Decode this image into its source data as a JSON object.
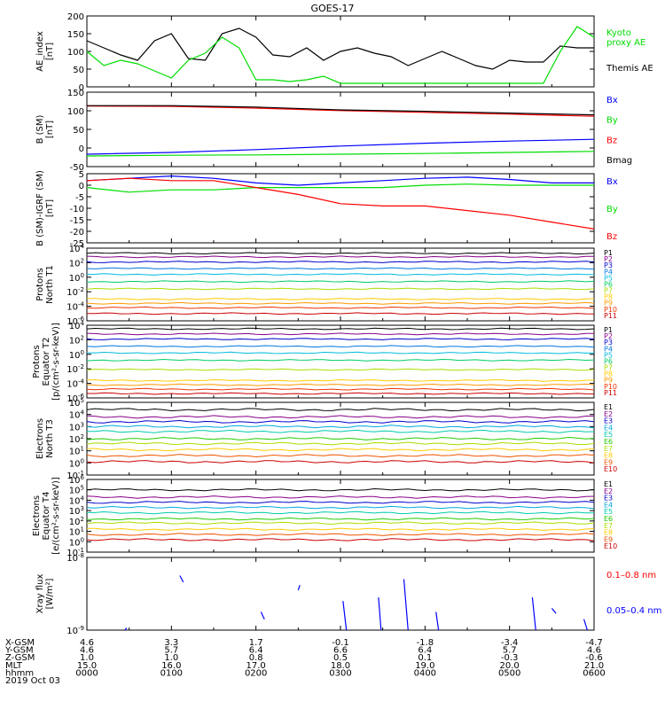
{
  "title": "GOES-17",
  "date_label": "2019 Oct 03",
  "footer": {
    "row_labels": [
      "X-GSM",
      "Y-GSM",
      "Z-GSM",
      "MLT",
      "hhmm"
    ],
    "columns": [
      [
        "4.6",
        "4.6",
        "1.0",
        "15.0",
        "0000"
      ],
      [
        "3.3",
        "5.7",
        "1.0",
        "16.0",
        "0100"
      ],
      [
        "1.7",
        "6.4",
        "0.8",
        "17.0",
        "0200"
      ],
      [
        "-0.1",
        "6.6",
        "0.5",
        "18.0",
        "0300"
      ],
      [
        "-1.8",
        "6.4",
        "0.1",
        "19.0",
        "0400"
      ],
      [
        "-3.4",
        "5.7",
        "-0.3",
        "20.0",
        "0500"
      ],
      [
        "-4.7",
        "4.6",
        "-0.6",
        "21.0",
        "0600"
      ]
    ]
  },
  "chart_data": [
    {
      "type": "line",
      "panel": "ae",
      "ylabel_lines": [
        "AE_index",
        "[nT]"
      ],
      "ylim": [
        0,
        200
      ],
      "yticks": [
        "0",
        "50",
        "100",
        "150",
        "200"
      ],
      "x_hours": [
        0,
        0.2,
        0.4,
        0.6,
        0.8,
        1,
        1.2,
        1.4,
        1.6,
        1.8,
        2,
        2.2,
        2.4,
        2.6,
        2.8,
        3,
        3.2,
        3.4,
        3.6,
        3.8,
        4,
        4.2,
        4.4,
        4.6,
        4.8,
        5,
        5.2,
        5.4,
        5.6,
        5.8,
        6
      ],
      "series": [
        {
          "name": "Themis AE",
          "color": "#000000",
          "values": [
            130,
            110,
            90,
            75,
            130,
            150,
            80,
            75,
            150,
            165,
            140,
            90,
            85,
            110,
            75,
            100,
            110,
            95,
            85,
            60,
            80,
            100,
            80,
            60,
            50,
            75,
            70,
            70,
            115,
            110,
            110
          ]
        },
        {
          "name": "Kyoto proxy AE",
          "color": "#00dd00",
          "values": [
            100,
            60,
            75,
            65,
            45,
            25,
            75,
            95,
            140,
            110,
            20,
            20,
            15,
            20,
            30,
            10,
            10,
            10,
            10,
            10,
            10,
            10,
            10,
            10,
            10,
            10,
            10,
            10,
            100,
            170,
            140
          ]
        }
      ],
      "legend": [
        {
          "text_lines": [
            "Kyoto",
            "proxy AE"
          ],
          "color": "#00dd00"
        },
        {
          "text_lines": [
            "Themis AE"
          ],
          "color": "#000000"
        }
      ]
    },
    {
      "type": "line",
      "panel": "bsm",
      "ylabel_lines": [
        "B (SM)",
        "[nT]"
      ],
      "ylim": [
        -60,
        150
      ],
      "yticks": [
        "-50",
        "0",
        "50",
        "100",
        "150"
      ],
      "x_hours": [
        0,
        1,
        2,
        3,
        4,
        5,
        6
      ],
      "series": [
        {
          "name": "Bx",
          "color": "#0000ff",
          "values": [
            -25,
            -20,
            -12,
            -2,
            6,
            12,
            17
          ]
        },
        {
          "name": "By",
          "color": "#00dd00",
          "values": [
            -30,
            -28,
            -27,
            -25,
            -23,
            -20,
            -17
          ]
        },
        {
          "name": "Bz",
          "color": "#ff0000",
          "values": [
            111,
            110,
            105,
            98,
            93,
            88,
            82
          ]
        },
        {
          "name": "Bmag",
          "color": "#000000",
          "values": [
            112,
            112,
            108,
            100,
            96,
            91,
            86
          ]
        }
      ],
      "legend": [
        {
          "text_lines": [
            "Bx"
          ],
          "color": "#0000ff"
        },
        {
          "text_lines": [
            "By"
          ],
          "color": "#00dd00"
        },
        {
          "text_lines": [
            "Bz"
          ],
          "color": "#ff0000"
        },
        {
          "text_lines": [
            "Bmag"
          ],
          "color": "#000000"
        }
      ]
    },
    {
      "type": "line",
      "panel": "bdiff",
      "ylabel_lines": [
        "B (SM)-IGRF (SM)",
        "[nT]"
      ],
      "ylim": [
        -25,
        5
      ],
      "yticks": [
        "-25",
        "-20",
        "-15",
        "-10",
        "-5",
        "0",
        "5"
      ],
      "x_hours": [
        0,
        0.5,
        1,
        1.5,
        2,
        2.5,
        3,
        3.5,
        4,
        4.5,
        5,
        5.5,
        6
      ],
      "series": [
        {
          "name": "Bx",
          "color": "#0000ff",
          "values": [
            2,
            3,
            4,
            3,
            1,
            0,
            1,
            2,
            3,
            3.5,
            2.5,
            1,
            1
          ]
        },
        {
          "name": "By",
          "color": "#00dd00",
          "values": [
            -1,
            -3,
            -2,
            -2,
            -1,
            -1,
            -1,
            -1,
            0,
            0.5,
            0,
            0,
            0
          ]
        },
        {
          "name": "Bz",
          "color": "#ff0000",
          "values": [
            2,
            3,
            2,
            2,
            -1,
            -4,
            -8,
            -9,
            -9,
            -11,
            -13,
            -16,
            -19
          ]
        }
      ],
      "legend": [
        {
          "text_lines": [
            "Bx"
          ],
          "color": "#0000ff"
        },
        {
          "text_lines": [
            "By"
          ],
          "color": "#00dd00"
        },
        {
          "text_lines": [
            "Bz"
          ],
          "color": "#ff0000"
        }
      ]
    },
    {
      "type": "line",
      "panel": "p1",
      "ylabel_lines": [
        "Protons",
        "North T1"
      ],
      "scale": "log",
      "ylim_exp": [
        -6,
        4
      ],
      "yticks": [
        "10^-6",
        "10^-4",
        "10^-2",
        "10^0",
        "10^2",
        "10^4"
      ],
      "channels": [
        "P1",
        "P2",
        "P3",
        "P4",
        "P5",
        "P6",
        "P7",
        "P8",
        "P9",
        "P10",
        "P11"
      ],
      "colors": [
        "#000000",
        "#880088",
        "#0000cc",
        "#0077dd",
        "#00bbdd",
        "#00cc66",
        "#aadd00",
        "#ffcc00",
        "#ff9900",
        "#ee3300",
        "#cc0000"
      ],
      "levels_exp": [
        3.3,
        2.8,
        2.1,
        1.2,
        0.4,
        -0.6,
        -1.6,
        -3.0,
        -3.6,
        -4.2,
        -5.0
      ]
    },
    {
      "type": "line",
      "panel": "p2",
      "ylabel_lines": [
        "Protons",
        "Equator T2",
        "[p/(cm²-s-sr-keV)]"
      ],
      "scale": "log",
      "ylim_exp": [
        -6,
        4
      ],
      "yticks": [
        "10^-6",
        "10^-4",
        "10^-2",
        "10^0",
        "10^2",
        "10^4"
      ],
      "channels": [
        "P1",
        "P2",
        "P3",
        "P4",
        "P5",
        "P6",
        "P7",
        "P8",
        "P9",
        "P10",
        "P11"
      ],
      "colors": [
        "#000000",
        "#880088",
        "#0000cc",
        "#0077dd",
        "#00bbdd",
        "#00cc66",
        "#aadd00",
        "#ffcc00",
        "#ff9900",
        "#ee3300",
        "#cc0000"
      ],
      "levels_exp": [
        3.5,
        2.8,
        2.1,
        1.1,
        0.2,
        -0.8,
        -2.1,
        -3.6,
        -4.2,
        -4.8,
        -5.4
      ]
    },
    {
      "type": "line",
      "panel": "e1",
      "ylabel_lines": [
        "Electrons",
        "North T3"
      ],
      "scale": "log",
      "ylim_exp": [
        -1,
        5
      ],
      "yticks": [
        "10^-1",
        "10^0",
        "10^1",
        "10^2",
        "10^3",
        "10^4",
        "10^5"
      ],
      "channels": [
        "E1",
        "E2",
        "E3",
        "E4",
        "E5",
        "E6",
        "E7",
        "E8",
        "E9",
        "E10"
      ],
      "colors": [
        "#000000",
        "#880088",
        "#0000cc",
        "#00aadd",
        "#00ccaa",
        "#22cc00",
        "#aadd00",
        "#ffcc00",
        "#ee5500",
        "#cc0000"
      ],
      "levels_exp": [
        4.4,
        3.8,
        3.4,
        3.0,
        2.6,
        2.0,
        1.6,
        1.1,
        0.6,
        0.1
      ]
    },
    {
      "type": "line",
      "panel": "e2",
      "ylabel_lines": [
        "Electrons",
        "Equator T4",
        "[e/(cm²-s-sr-keV)]"
      ],
      "scale": "log",
      "ylim_exp": [
        -1,
        6
      ],
      "yticks": [
        "10^-1",
        "10^0",
        "10^1",
        "10^2",
        "10^3",
        "10^4",
        "10^5",
        "10^6"
      ],
      "channels": [
        "E1",
        "E2",
        "E3",
        "E4",
        "E5",
        "E6",
        "E7",
        "E8",
        "E9",
        "E10"
      ],
      "colors": [
        "#000000",
        "#880088",
        "#0000cc",
        "#00aadd",
        "#00ccaa",
        "#22cc00",
        "#aadd00",
        "#ffcc00",
        "#ee5500",
        "#cc0000"
      ],
      "levels_exp": [
        5.0,
        4.3,
        3.8,
        3.3,
        2.8,
        2.2,
        1.8,
        1.2,
        0.7,
        0.2
      ]
    },
    {
      "type": "line",
      "panel": "xray",
      "ylabel_lines": [
        "Xray  flux",
        "[W/m²]"
      ],
      "scale": "log",
      "ylim_exp": [
        -9,
        -8
      ],
      "yticks": [
        "10^-9",
        "10^-8"
      ],
      "legend": [
        {
          "text_lines": [
            "0.1–0.8 nm"
          ],
          "color": "#ff0000"
        },
        {
          "text_lines": [
            "0.05–0.4 nm"
          ],
          "color": "#0000ff"
        }
      ],
      "segments_blue": [
        [
          0.45,
          -9.0,
          0.47,
          -8.97
        ],
        [
          1.1,
          -8.25,
          1.14,
          -8.34
        ],
        [
          2.06,
          -8.75,
          2.1,
          -8.85
        ],
        [
          2.5,
          -8.45,
          2.52,
          -8.38
        ],
        [
          3.03,
          -8.6,
          3.07,
          -9.0
        ],
        [
          3.45,
          -8.55,
          3.48,
          -9.0
        ],
        [
          3.75,
          -8.3,
          3.8,
          -9.0
        ],
        [
          4.13,
          -8.75,
          4.16,
          -9.0
        ],
        [
          5.27,
          -8.55,
          5.31,
          -9.0
        ],
        [
          5.5,
          -8.7,
          5.55,
          -8.77
        ],
        [
          5.88,
          -8.85,
          5.92,
          -9.0
        ]
      ]
    }
  ]
}
